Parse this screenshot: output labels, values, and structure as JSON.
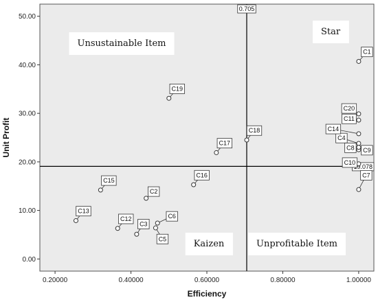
{
  "chart_data": {
    "type": "scatter",
    "xlabel": "Efficiency",
    "ylabel": "Unit Profit",
    "xlim": [
      0.16,
      1.04
    ],
    "ylim": [
      -2.5,
      52.5
    ],
    "x_ticks": [
      0.2,
      0.4,
      0.6,
      0.8,
      1.0
    ],
    "x_tick_labels": [
      "0.20000",
      "0.40000",
      "0.60000",
      "0.80000",
      "1.00000"
    ],
    "y_ticks": [
      0,
      10,
      20,
      30,
      40,
      50
    ],
    "y_tick_labels": [
      "0.00",
      "10.00",
      "20.00",
      "30.00",
      "40.00",
      "50.00"
    ],
    "grid": false,
    "reference_lines": [
      {
        "axis": "x",
        "value": 0.705,
        "label": "0.705"
      },
      {
        "axis": "y",
        "value": 19.078,
        "label": "19.078"
      }
    ],
    "quadrant_labels": [
      "Unsustainable Item",
      "Star",
      "Kaizen",
      "Unprofitable Item"
    ],
    "points": [
      {
        "label": "C1",
        "x": 1.0,
        "y": 40.7
      },
      {
        "label": "C2",
        "x": 0.44,
        "y": 12.5
      },
      {
        "label": "C3",
        "x": 0.415,
        "y": 5.1
      },
      {
        "label": "C4",
        "x": 1.0,
        "y": 23.8
      },
      {
        "label": "C5",
        "x": 0.465,
        "y": 6.4
      },
      {
        "label": "C6",
        "x": 0.47,
        "y": 7.4
      },
      {
        "label": "C7",
        "x": 1.0,
        "y": 14.3
      },
      {
        "label": "C8",
        "x": 1.0,
        "y": 22.5
      },
      {
        "label": "C9",
        "x": 1.0,
        "y": 23.0
      },
      {
        "label": "C10",
        "x": 1.0,
        "y": 19.6
      },
      {
        "label": "C11",
        "x": 1.0,
        "y": 28.6
      },
      {
        "label": "C12",
        "x": 0.365,
        "y": 6.3
      },
      {
        "label": "C13",
        "x": 0.255,
        "y": 7.9
      },
      {
        "label": "C14",
        "x": 1.0,
        "y": 25.8
      },
      {
        "label": "C15",
        "x": 0.32,
        "y": 14.2
      },
      {
        "label": "C16",
        "x": 0.565,
        "y": 15.3
      },
      {
        "label": "C17",
        "x": 0.625,
        "y": 21.9
      },
      {
        "label": "C18",
        "x": 0.705,
        "y": 24.5
      },
      {
        "label": "C19",
        "x": 0.5,
        "y": 33.1
      },
      {
        "label": "C20",
        "x": 1.0,
        "y": 29.9
      }
    ],
    "colors": {
      "plot_bg": "#ebebeb",
      "marker_edge": "#333333",
      "line": "#000000"
    }
  }
}
